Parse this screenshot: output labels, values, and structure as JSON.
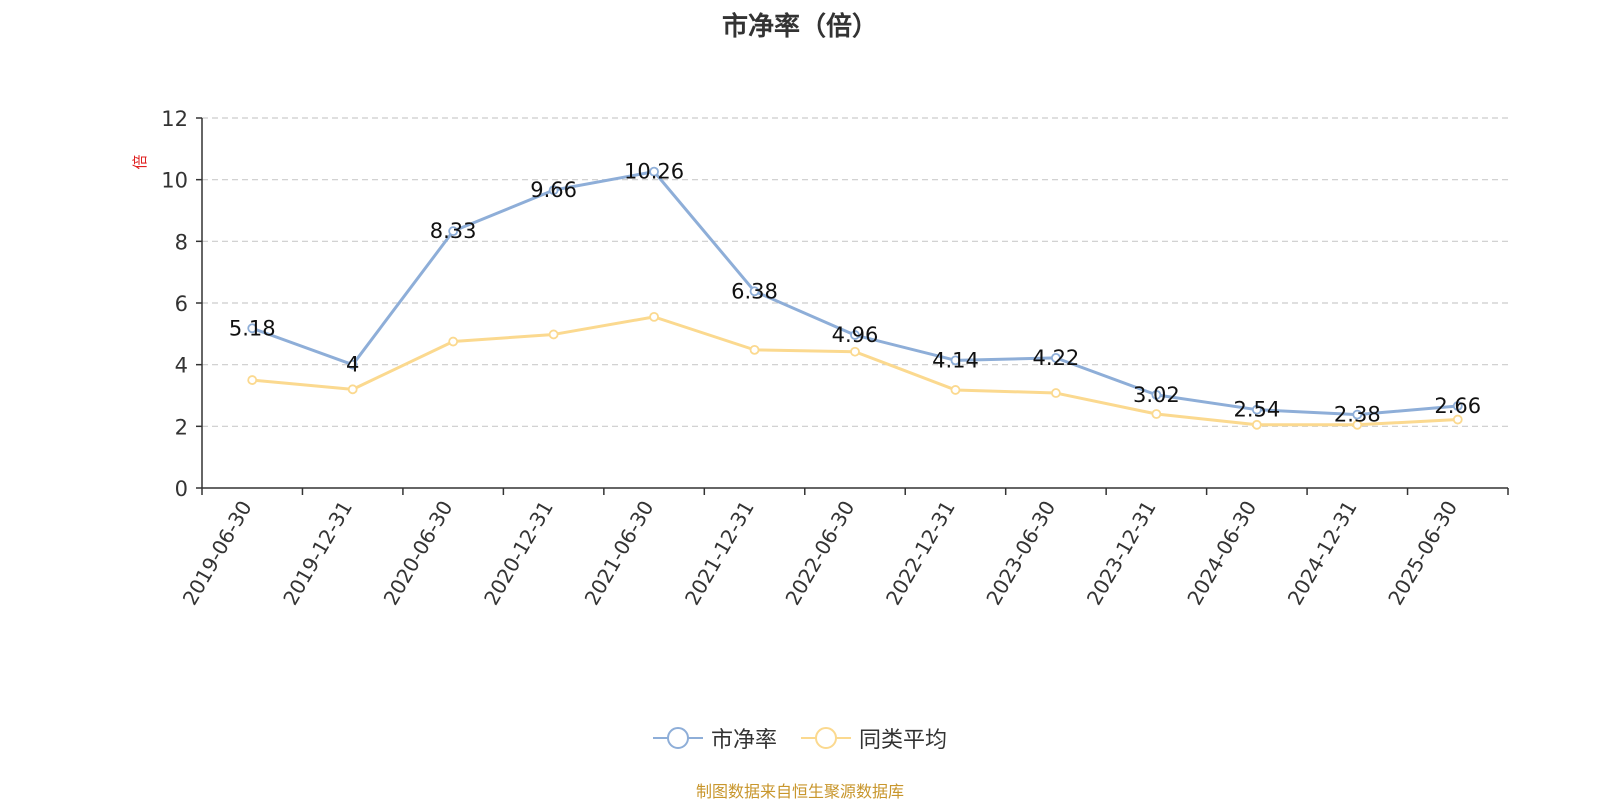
{
  "chart_data": {
    "type": "line",
    "title": "市净率（倍）",
    "ylabel": "倍",
    "xlabel": "",
    "ylim": [
      0,
      12
    ],
    "yticks": [
      0,
      2,
      4,
      6,
      8,
      10,
      12
    ],
    "grid": true,
    "legend_position": "bottom",
    "categories": [
      "2019-06-30",
      "2019-12-31",
      "2020-06-30",
      "2020-12-31",
      "2021-06-30",
      "2021-12-31",
      "2022-06-30",
      "2022-12-31",
      "2023-06-30",
      "2023-12-31",
      "2024-06-30",
      "2024-12-31",
      "2025-06-30"
    ],
    "series": [
      {
        "name": "市净率",
        "color": "#8eaed8",
        "values": [
          5.18,
          4,
          8.33,
          9.66,
          10.26,
          6.38,
          4.96,
          4.14,
          4.22,
          3.02,
          2.54,
          2.38,
          2.66
        ],
        "labels": [
          "5.18",
          "4",
          "8.33",
          "9.66",
          "10.26",
          "6.38",
          "4.96",
          "4.14",
          "4.22",
          "3.02",
          "2.54",
          "2.38",
          "2.66"
        ]
      },
      {
        "name": "同类平均",
        "color": "#fbd98f",
        "values": [
          3.5,
          3.2,
          4.75,
          4.98,
          5.55,
          4.48,
          4.42,
          3.18,
          3.08,
          2.4,
          2.05,
          2.05,
          2.22
        ]
      }
    ],
    "source": "制图数据来自恒生聚源数据库"
  }
}
